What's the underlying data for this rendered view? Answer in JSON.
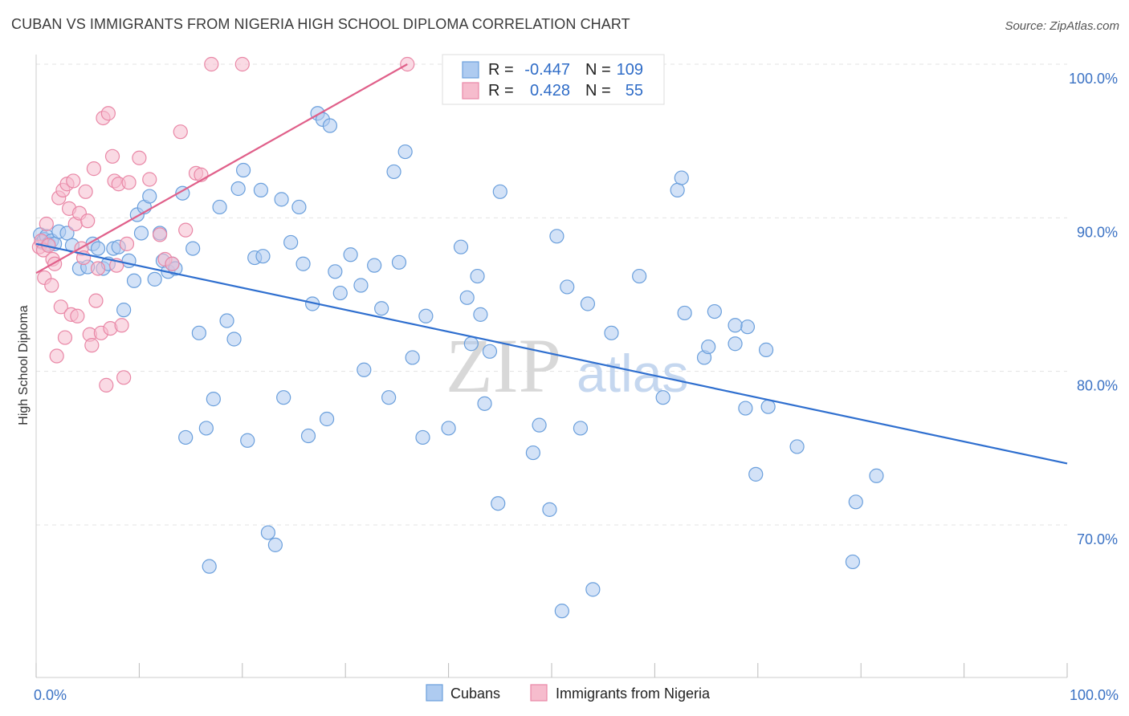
{
  "title": "CUBAN VS IMMIGRANTS FROM NIGERIA HIGH SCHOOL DIPLOMA CORRELATION CHART",
  "source": "Source: ZipAtlas.com",
  "colors": {
    "cubans_fill": "#aecbf0",
    "cubans_stroke": "#6a9fdc",
    "cubans_line": "#2f6fcf",
    "nigeria_fill": "#f6bccd",
    "nigeria_stroke": "#e987a6",
    "nigeria_line": "#e0608a",
    "axis_text": "#3b72c4",
    "grid": "#e3e3e3"
  },
  "legend": {
    "r_label": "R =",
    "n_label": "N =",
    "rows": [
      {
        "series": "cubans",
        "r": "-0.447",
        "n": "109"
      },
      {
        "series": "nigeria",
        "r": "0.428",
        "n": "55"
      }
    ]
  },
  "bottom_legend": [
    "Cubans",
    "Immigrants from Nigeria"
  ],
  "watermark": {
    "zip": "ZIP",
    "atlas": "atlas"
  },
  "chart_data": {
    "type": "scatter",
    "xlabel": "",
    "ylabel": "High School Diploma",
    "xlim": [
      0,
      100
    ],
    "ylim": [
      60.5,
      101.5
    ],
    "x_tick_labels": [
      {
        "value": 0,
        "label": "0.0%"
      },
      {
        "value": 100,
        "label": "100.0%"
      }
    ],
    "y_tick_labels": [
      {
        "value": 100,
        "label": "100.0%"
      },
      {
        "value": 90,
        "label": "90.0%"
      },
      {
        "value": 80,
        "label": "80.0%"
      },
      {
        "value": 70,
        "label": "70.0%"
      }
    ],
    "grid": true,
    "legend_position": "top-center",
    "series": [
      {
        "name": "Cubans",
        "key": "cubans",
        "trend": [
          [
            0,
            88.3
          ],
          [
            100,
            74.0
          ]
        ],
        "points": [
          [
            0.4,
            88.9
          ],
          [
            0.6,
            88.4
          ],
          [
            0.8,
            88.6
          ],
          [
            1.0,
            88.8
          ],
          [
            1.2,
            88.3
          ],
          [
            1.5,
            88.5
          ],
          [
            1.8,
            88.3
          ],
          [
            2.2,
            89.1
          ],
          [
            3.0,
            89.0
          ],
          [
            3.5,
            88.2
          ],
          [
            4.2,
            86.7
          ],
          [
            5.0,
            86.8
          ],
          [
            5.5,
            88.3
          ],
          [
            6.0,
            88.0
          ],
          [
            6.5,
            86.7
          ],
          [
            7.0,
            87.0
          ],
          [
            7.5,
            88.0
          ],
          [
            8.0,
            88.1
          ],
          [
            8.5,
            84.0
          ],
          [
            9.0,
            87.2
          ],
          [
            9.5,
            85.9
          ],
          [
            9.8,
            90.2
          ],
          [
            10.2,
            89.0
          ],
          [
            10.5,
            90.7
          ],
          [
            11.0,
            91.4
          ],
          [
            11.5,
            86.0
          ],
          [
            12.0,
            89.0
          ],
          [
            12.3,
            87.2
          ],
          [
            12.8,
            86.5
          ],
          [
            13.2,
            87.0
          ],
          [
            13.5,
            86.7
          ],
          [
            14.2,
            91.6
          ],
          [
            14.5,
            75.7
          ],
          [
            15.2,
            88.0
          ],
          [
            15.8,
            82.5
          ],
          [
            16.5,
            76.3
          ],
          [
            16.8,
            67.3
          ],
          [
            17.2,
            78.2
          ],
          [
            17.8,
            90.7
          ],
          [
            18.5,
            83.3
          ],
          [
            19.2,
            82.1
          ],
          [
            19.6,
            91.9
          ],
          [
            20.1,
            93.1
          ],
          [
            20.5,
            75.5
          ],
          [
            21.2,
            87.4
          ],
          [
            21.8,
            91.8
          ],
          [
            22.0,
            87.5
          ],
          [
            22.5,
            69.5
          ],
          [
            23.2,
            68.7
          ],
          [
            23.8,
            91.2
          ],
          [
            24.0,
            78.3
          ],
          [
            24.7,
            88.4
          ],
          [
            25.5,
            90.7
          ],
          [
            25.9,
            87.0
          ],
          [
            26.4,
            75.8
          ],
          [
            26.8,
            84.4
          ],
          [
            27.3,
            96.8
          ],
          [
            27.8,
            96.4
          ],
          [
            28.2,
            76.9
          ],
          [
            28.5,
            96.0
          ],
          [
            29.0,
            86.5
          ],
          [
            29.5,
            85.1
          ],
          [
            30.5,
            87.6
          ],
          [
            31.5,
            85.6
          ],
          [
            31.8,
            80.1
          ],
          [
            32.8,
            86.9
          ],
          [
            33.5,
            84.1
          ],
          [
            34.2,
            78.3
          ],
          [
            34.7,
            93.0
          ],
          [
            35.2,
            87.1
          ],
          [
            35.8,
            94.3
          ],
          [
            36.5,
            80.9
          ],
          [
            37.5,
            75.7
          ],
          [
            37.8,
            83.6
          ],
          [
            40.0,
            76.3
          ],
          [
            41.2,
            88.1
          ],
          [
            41.8,
            84.8
          ],
          [
            42.2,
            81.8
          ],
          [
            42.8,
            86.2
          ],
          [
            43.1,
            83.7
          ],
          [
            43.5,
            77.9
          ],
          [
            44.0,
            81.3
          ],
          [
            44.8,
            71.4
          ],
          [
            45.0,
            91.7
          ],
          [
            48.2,
            74.7
          ],
          [
            48.8,
            76.5
          ],
          [
            49.8,
            71.0
          ],
          [
            50.5,
            88.8
          ],
          [
            51.0,
            64.4
          ],
          [
            51.5,
            85.5
          ],
          [
            52.8,
            76.3
          ],
          [
            53.5,
            84.4
          ],
          [
            54.0,
            65.8
          ],
          [
            55.8,
            82.5
          ],
          [
            58.5,
            86.2
          ],
          [
            60.8,
            78.3
          ],
          [
            62.2,
            91.8
          ],
          [
            62.6,
            92.6
          ],
          [
            62.9,
            83.8
          ],
          [
            64.8,
            80.9
          ],
          [
            65.2,
            81.6
          ],
          [
            65.8,
            83.9
          ],
          [
            67.8,
            81.8
          ],
          [
            68.8,
            77.6
          ],
          [
            69.0,
            82.9
          ],
          [
            69.8,
            73.3
          ],
          [
            70.8,
            81.4
          ],
          [
            71.0,
            77.7
          ],
          [
            73.8,
            75.1
          ],
          [
            79.2,
            67.6
          ],
          [
            79.5,
            71.5
          ],
          [
            81.5,
            73.2
          ],
          [
            67.8,
            83.0
          ]
        ]
      },
      {
        "name": "Immigrants from Nigeria",
        "key": "nigeria",
        "trend": [
          [
            0,
            86.4
          ],
          [
            36,
            100.0
          ]
        ],
        "points": [
          [
            0.3,
            88.1
          ],
          [
            0.5,
            88.5
          ],
          [
            0.7,
            87.9
          ],
          [
            0.8,
            86.1
          ],
          [
            1.0,
            89.6
          ],
          [
            1.2,
            88.2
          ],
          [
            1.5,
            85.6
          ],
          [
            1.6,
            87.3
          ],
          [
            1.8,
            87.0
          ],
          [
            2.0,
            81.0
          ],
          [
            2.2,
            91.3
          ],
          [
            2.4,
            84.2
          ],
          [
            2.6,
            91.8
          ],
          [
            2.8,
            82.2
          ],
          [
            3.0,
            92.2
          ],
          [
            3.2,
            90.6
          ],
          [
            3.4,
            83.7
          ],
          [
            3.6,
            92.4
          ],
          [
            3.8,
            89.6
          ],
          [
            4.0,
            83.6
          ],
          [
            4.2,
            90.3
          ],
          [
            4.4,
            88.0
          ],
          [
            4.6,
            87.4
          ],
          [
            4.8,
            91.7
          ],
          [
            5.0,
            89.8
          ],
          [
            5.2,
            82.4
          ],
          [
            5.4,
            81.7
          ],
          [
            5.6,
            93.2
          ],
          [
            5.8,
            84.6
          ],
          [
            6.0,
            86.7
          ],
          [
            6.3,
            82.5
          ],
          [
            6.5,
            96.5
          ],
          [
            6.8,
            79.1
          ],
          [
            7.0,
            96.8
          ],
          [
            7.2,
            82.8
          ],
          [
            7.4,
            94.0
          ],
          [
            7.6,
            92.4
          ],
          [
            7.8,
            86.9
          ],
          [
            8.0,
            92.2
          ],
          [
            8.3,
            83.0
          ],
          [
            8.5,
            79.6
          ],
          [
            8.8,
            88.3
          ],
          [
            9.0,
            92.3
          ],
          [
            10.0,
            93.9
          ],
          [
            11.0,
            92.5
          ],
          [
            12.0,
            88.9
          ],
          [
            12.5,
            87.3
          ],
          [
            13.2,
            87.0
          ],
          [
            14.0,
            95.6
          ],
          [
            14.5,
            89.2
          ],
          [
            15.5,
            92.9
          ],
          [
            16.0,
            92.8
          ],
          [
            17.0,
            100.0
          ],
          [
            20.0,
            100.0
          ],
          [
            36.0,
            100.0
          ]
        ]
      }
    ]
  }
}
